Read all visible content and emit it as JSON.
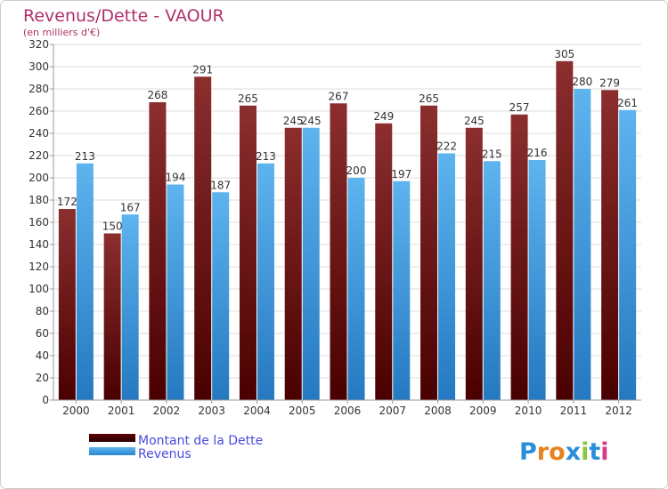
{
  "chart_data": {
    "type": "bar",
    "title": "Revenus/Dette - VAOUR",
    "subtitle": "(en milliers d'€)",
    "categories": [
      "2000",
      "2001",
      "2002",
      "2003",
      "2004",
      "2005",
      "2006",
      "2007",
      "2008",
      "2009",
      "2010",
      "2011",
      "2012"
    ],
    "series": [
      {
        "name": "Montant de la Dette",
        "values": [
          172,
          150,
          268,
          291,
          265,
          245,
          267,
          249,
          265,
          245,
          257,
          305,
          279
        ],
        "color": "#7a1a1a"
      },
      {
        "name": "Revenus",
        "values": [
          213,
          167,
          194,
          187,
          213,
          245,
          200,
          197,
          222,
          215,
          216,
          280,
          261
        ],
        "color": "#3d9be0"
      }
    ],
    "ylim": [
      0,
      320
    ],
    "yticks": [
      0,
      20,
      40,
      60,
      80,
      100,
      120,
      140,
      160,
      180,
      200,
      220,
      240,
      260,
      280,
      300,
      320
    ],
    "grid": true,
    "legend": "bottom-left",
    "watermark": "Proxiti",
    "colors": {
      "title": "#b0306a",
      "legend_text": "#4a4adf",
      "background": "#ffffff",
      "grid": "#dddddd"
    }
  }
}
